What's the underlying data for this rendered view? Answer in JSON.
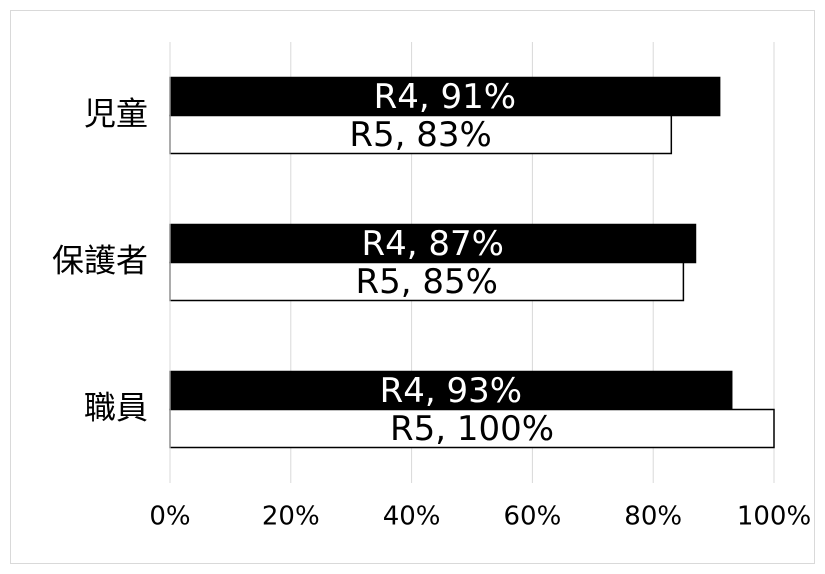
{
  "chart_data": {
    "type": "bar",
    "orientation": "horizontal",
    "categories": [
      "児童",
      "保護者",
      "職員"
    ],
    "series": [
      {
        "name": "R4",
        "color": "#000000",
        "values": [
          91,
          87,
          93
        ],
        "value_labels": [
          "R4, 91%",
          "R4, 87%",
          "R4, 93%"
        ]
      },
      {
        "name": "R5",
        "color": "#ffffff",
        "values": [
          83,
          85,
          100
        ],
        "value_labels": [
          "R5, 83%",
          "R5, 85%",
          "R5, 100%"
        ]
      }
    ],
    "xlim": [
      0,
      100
    ],
    "xticks": [
      {
        "value": 0,
        "label": "0%"
      },
      {
        "value": 20,
        "label": "20%"
      },
      {
        "value": 40,
        "label": "40%"
      },
      {
        "value": 60,
        "label": "60%"
      },
      {
        "value": 80,
        "label": "80%"
      },
      {
        "value": 100,
        "label": "100%"
      }
    ],
    "grid": true
  }
}
